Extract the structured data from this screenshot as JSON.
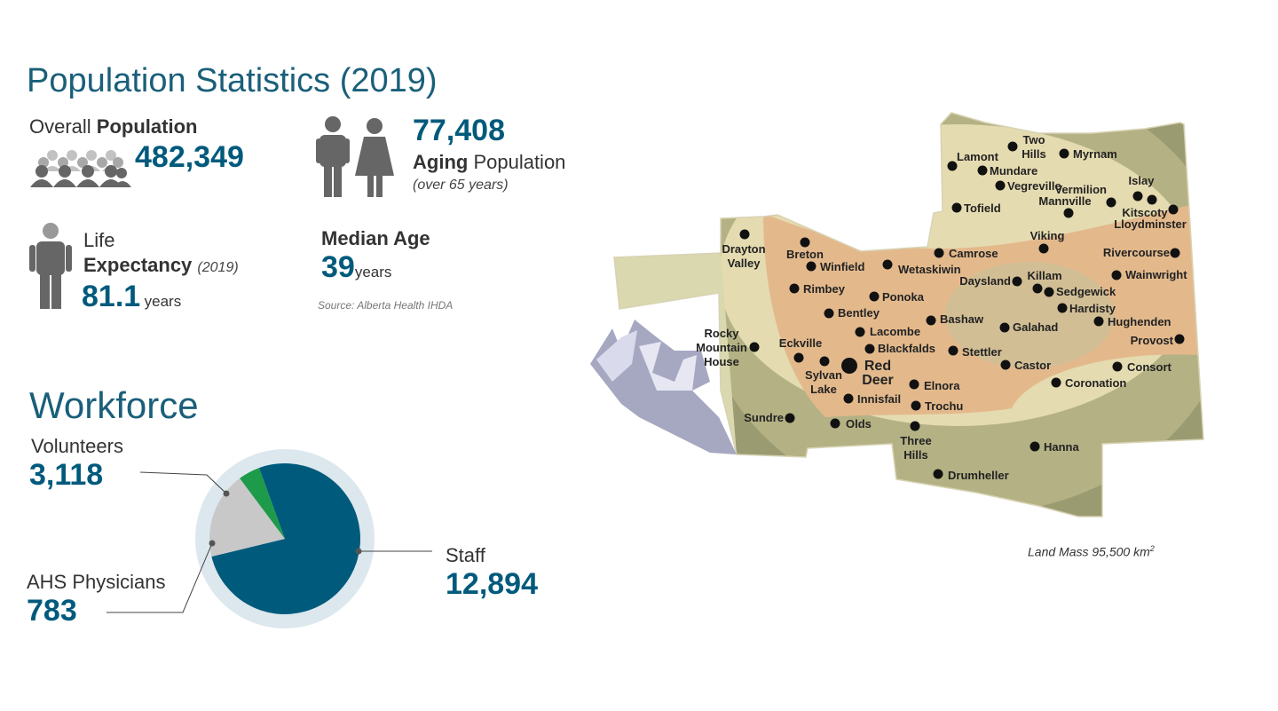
{
  "population": {
    "title": "Population Statistics (2019)",
    "overall_label_plain": "Overall ",
    "overall_label_bold": "Population",
    "overall_value": "482,349",
    "aging_value": "77,408",
    "aging_label_bold": "Aging",
    "aging_label_plain": " Population",
    "aging_note": "(over 65 years)",
    "life_label_line1": "Life",
    "life_label_bold": "Expectancy",
    "life_note": "(2019)",
    "life_value": "81.1",
    "life_unit": "years",
    "median_label": "Median Age",
    "median_value": "39",
    "median_unit": "years",
    "source": "Source: Alberta Health IHDA"
  },
  "workforce": {
    "title": "Workforce",
    "volunteers_label": "Volunteers",
    "volunteers_value": "3,118",
    "physicians_label": "AHS Physicians",
    "physicians_value": "783",
    "staff_label": "Staff",
    "staff_value": "12,894"
  },
  "chart_data": {
    "type": "pie",
    "categories": [
      "Staff",
      "Volunteers",
      "AHS Physicians"
    ],
    "values": [
      12894,
      3118,
      783
    ],
    "colors": [
      "#005a7c",
      "#c8c8c8",
      "#1e9b4a"
    ],
    "title": ""
  },
  "map": {
    "land_mass": "Land Mass 95,500 km",
    "land_mass_sup": "2",
    "colors": {
      "outer": "#9b9b72",
      "mid": "#e5dbb0",
      "inner": "#e3b98c",
      "mountains": "#a6a8c2"
    },
    "cities": [
      {
        "name": "Two Hills",
        "lines": [
          "Two",
          "Hills"
        ]
      },
      {
        "name": "Myrnam",
        "lines": [
          "Myrnam"
        ]
      },
      {
        "name": "Lamont",
        "lines": [
          "Lamont"
        ]
      },
      {
        "name": "Mundare",
        "lines": [
          "Mundare"
        ]
      },
      {
        "name": "Vegreville",
        "lines": [
          "Vegreville"
        ]
      },
      {
        "name": "Vermilion",
        "lines": [
          "Vermilion"
        ]
      },
      {
        "name": "Islay",
        "lines": [
          "Islay"
        ]
      },
      {
        "name": "Tofield",
        "lines": [
          "Tofield"
        ]
      },
      {
        "name": "Mannville",
        "lines": [
          "Mannville"
        ]
      },
      {
        "name": "Kitscoty",
        "lines": [
          "Kitscoty"
        ]
      },
      {
        "name": "Lloydminster",
        "lines": [
          "Lloydminster"
        ]
      },
      {
        "name": "Drayton Valley",
        "lines": [
          "Drayton",
          "Valley"
        ]
      },
      {
        "name": "Breton",
        "lines": [
          "Breton"
        ]
      },
      {
        "name": "Winfield",
        "lines": [
          "Winfield"
        ]
      },
      {
        "name": "Wetaskiwin",
        "lines": [
          "Wetaskiwin"
        ]
      },
      {
        "name": "Camrose",
        "lines": [
          "Camrose"
        ]
      },
      {
        "name": "Viking",
        "lines": [
          "Viking"
        ]
      },
      {
        "name": "Rivercourse",
        "lines": [
          "Rivercourse"
        ]
      },
      {
        "name": "Wainwright",
        "lines": [
          "Wainwright"
        ]
      },
      {
        "name": "Daysland",
        "lines": [
          "Daysland"
        ]
      },
      {
        "name": "Killam",
        "lines": [
          "Killam"
        ]
      },
      {
        "name": "Sedgewick",
        "lines": [
          "Sedgewick"
        ]
      },
      {
        "name": "Rimbey",
        "lines": [
          "Rimbey"
        ]
      },
      {
        "name": "Ponoka",
        "lines": [
          "Ponoka"
        ]
      },
      {
        "name": "Hardisty",
        "lines": [
          "Hardisty"
        ]
      },
      {
        "name": "Bentley",
        "lines": [
          "Bentley"
        ]
      },
      {
        "name": "Bashaw",
        "lines": [
          "Bashaw"
        ]
      },
      {
        "name": "Hughenden",
        "lines": [
          "Hughenden"
        ]
      },
      {
        "name": "Galahad",
        "lines": [
          "Galahad"
        ]
      },
      {
        "name": "Lacombe",
        "lines": [
          "Lacombe"
        ]
      },
      {
        "name": "Rocky Mountain House",
        "lines": [
          "Rocky",
          "Mountain",
          "House"
        ]
      },
      {
        "name": "Eckville",
        "lines": [
          "Eckville"
        ]
      },
      {
        "name": "Blackfalds",
        "lines": [
          "Blackfalds"
        ]
      },
      {
        "name": "Provost",
        "lines": [
          "Provost"
        ]
      },
      {
        "name": "Stettler",
        "lines": [
          "Stettler"
        ]
      },
      {
        "name": "Red Deer",
        "lines": [
          "Red",
          "Deer"
        ]
      },
      {
        "name": "Sylvan Lake",
        "lines": [
          "Sylvan",
          "Lake"
        ]
      },
      {
        "name": "Castor",
        "lines": [
          "Castor"
        ]
      },
      {
        "name": "Consort",
        "lines": [
          "Consort"
        ]
      },
      {
        "name": "Innisfail",
        "lines": [
          "Innisfail"
        ]
      },
      {
        "name": "Elnora",
        "lines": [
          "Elnora"
        ]
      },
      {
        "name": "Coronation",
        "lines": [
          "Coronation"
        ]
      },
      {
        "name": "Trochu",
        "lines": [
          "Trochu"
        ]
      },
      {
        "name": "Sundre",
        "lines": [
          "Sundre"
        ]
      },
      {
        "name": "Olds",
        "lines": [
          "Olds"
        ]
      },
      {
        "name": "Three Hills",
        "lines": [
          "Three",
          "Hills"
        ]
      },
      {
        "name": "Hanna",
        "lines": [
          "Hanna"
        ]
      },
      {
        "name": "Drumheller",
        "lines": [
          "Drumheller"
        ]
      }
    ]
  }
}
